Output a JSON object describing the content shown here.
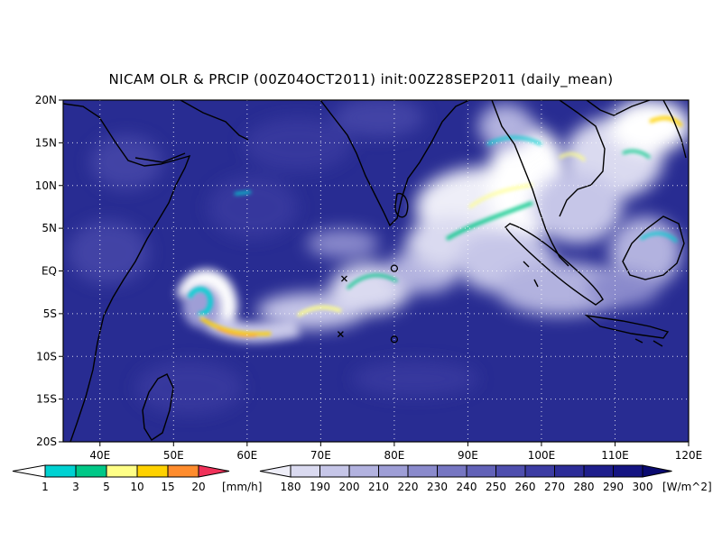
{
  "title": "NICAM OLR & PRCIP (00Z04OCT2011) init:00Z28SEP2011 (daily_mean)",
  "map": {
    "lon_range": [
      35,
      120
    ],
    "lat_range": [
      -20,
      20
    ],
    "x_ticks": [
      {
        "value": 40,
        "label": "40E"
      },
      {
        "value": 50,
        "label": "50E"
      },
      {
        "value": 60,
        "label": "60E"
      },
      {
        "value": 70,
        "label": "70E"
      },
      {
        "value": 80,
        "label": "80E"
      },
      {
        "value": 90,
        "label": "90E"
      },
      {
        "value": 100,
        "label": "100E"
      },
      {
        "value": 110,
        "label": "110E"
      },
      {
        "value": 120,
        "label": "120E"
      }
    ],
    "y_ticks": [
      {
        "value": 20,
        "label": "20N"
      },
      {
        "value": 15,
        "label": "15N"
      },
      {
        "value": 10,
        "label": "10N"
      },
      {
        "value": 5,
        "label": "5N"
      },
      {
        "value": 0,
        "label": "EQ"
      },
      {
        "value": -5,
        "label": "5S"
      },
      {
        "value": -10,
        "label": "10S"
      },
      {
        "value": -15,
        "label": "15S"
      },
      {
        "value": -20,
        "label": "20S"
      }
    ],
    "grid": true,
    "background_color": "#282c92",
    "markers": [
      {
        "type": "x",
        "lon": 73.2,
        "lat": -0.9
      },
      {
        "type": "x",
        "lon": 72.7,
        "lat": -7.4
      },
      {
        "type": "circle",
        "lon": 80.0,
        "lat": 0.3
      },
      {
        "type": "circle",
        "lon": 80.0,
        "lat": -8.0
      }
    ]
  },
  "precip_legend": {
    "labels": [
      "1",
      "3",
      "5",
      "10",
      "15",
      "20"
    ],
    "unit": "[mm/h]",
    "colors": [
      "#00d2d2",
      "#00c887",
      "#ffff87",
      "#ffd200",
      "#ff8c2d",
      "#f0325a"
    ]
  },
  "olr_legend": {
    "labels": [
      "180",
      "190",
      "200",
      "210",
      "220",
      "230",
      "240",
      "250",
      "260",
      "270",
      "280",
      "290",
      "300"
    ],
    "unit": "[W/m^2]",
    "colors": [
      "#eeeef8",
      "#dadaf0",
      "#c6c6e8",
      "#b2b2df",
      "#9e9ed6",
      "#8a8acc",
      "#7676c2",
      "#6262b8",
      "#4e4eae",
      "#3c3ca3",
      "#2c2c98",
      "#1e1e8c",
      "#141482",
      "#0a0a70"
    ]
  },
  "cloud_features": [
    {
      "name": "southern-ocean-cyclone",
      "lon": 52,
      "lat": -5.5
    },
    {
      "name": "central-indian-ocean-band",
      "lon": 76,
      "lat": -3.5
    },
    {
      "name": "bay-of-bengal-cloud-mass",
      "lon": 93,
      "lat": 8
    },
    {
      "name": "south-china-sea-clouds",
      "lon": 110,
      "lat": 12
    },
    {
      "name": "borneo-clouds",
      "lon": 114,
      "lat": 2
    }
  ],
  "precip_features": [
    {
      "name": "rain-cyclone-ring",
      "lon": 51.5,
      "lat": -5,
      "color": "#ffff87"
    },
    {
      "name": "rain-cyclone-tail",
      "lon": 58,
      "lat": -6.5,
      "color": "#ffd200"
    },
    {
      "name": "rain-indian-ocean",
      "lon": 70,
      "lat": -4.5,
      "color": "#ffff87"
    },
    {
      "name": "rain-bay-of-bengal",
      "lon": 93,
      "lat": 9,
      "color": "#00c887"
    },
    {
      "name": "rain-andaman",
      "lon": 95,
      "lat": 5,
      "color": "#00d2d2"
    },
    {
      "name": "rain-south-china-sea",
      "lon": 114,
      "lat": 15,
      "color": "#ffff87"
    },
    {
      "name": "rain-myanmar",
      "lon": 95,
      "lat": 15,
      "color": "#00c887"
    },
    {
      "name": "rain-borneo",
      "lon": 115,
      "lat": 3,
      "color": "#00d2d2"
    }
  ]
}
